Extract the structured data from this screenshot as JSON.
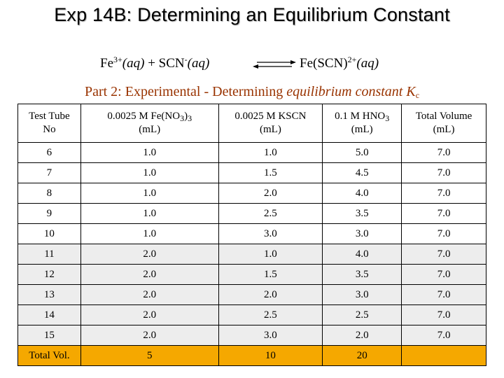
{
  "title": "Exp 14B: Determining an Equilibrium Constant",
  "equation": {
    "fe": "Fe",
    "fe_charge": "3+",
    "fe_state": "(aq)",
    "plus": " + SCN",
    "scn_charge": "-",
    "scn_state": "(aq)",
    "product": "Fe(SCN)",
    "product_charge": "2+",
    "product_state": "(aq)"
  },
  "subtitle": {
    "prefix": "Part 2: Experimental - Determining ",
    "emphasis": "equilibrium constant K",
    "subscript": "c"
  },
  "table": {
    "headers": {
      "col1_line1": "Test Tube",
      "col1_line2": "No",
      "col2_prefix": "0.0025 M Fe(NO",
      "col2_sub1": "3",
      "col2_mid": ")",
      "col2_sub2": "3",
      "col2_unit": "(mL)",
      "col3_line1": "0.0025 M KSCN",
      "col3_unit": "(mL)",
      "col4_prefix": "0.1 M HNO",
      "col4_sub": "3",
      "col4_unit": "(mL)",
      "col5_line1": "Total Volume",
      "col5_unit": "(mL)"
    },
    "rows": [
      [
        "6",
        "1.0",
        "1.0",
        "5.0",
        "7.0"
      ],
      [
        "7",
        "1.0",
        "1.5",
        "4.5",
        "7.0"
      ],
      [
        "8",
        "1.0",
        "2.0",
        "4.0",
        "7.0"
      ],
      [
        "9",
        "1.0",
        "2.5",
        "3.5",
        "7.0"
      ],
      [
        "10",
        "1.0",
        "3.0",
        "3.0",
        "7.0"
      ],
      [
        "11",
        "2.0",
        "1.0",
        "4.0",
        "7.0"
      ],
      [
        "12",
        "2.0",
        "1.5",
        "3.5",
        "7.0"
      ],
      [
        "13",
        "2.0",
        "2.0",
        "3.0",
        "7.0"
      ],
      [
        "14",
        "2.0",
        "2.5",
        "2.5",
        "7.0"
      ],
      [
        "15",
        "2.0",
        "3.0",
        "2.0",
        "7.0"
      ]
    ],
    "total": [
      "Total Vol.",
      "5",
      "10",
      "20",
      ""
    ]
  },
  "colors": {
    "subtitle": "#993300",
    "total_row": "#f5a800",
    "shaded_row": "#ededed"
  },
  "icons": [
    "equilibrium-arrows-icon"
  ]
}
